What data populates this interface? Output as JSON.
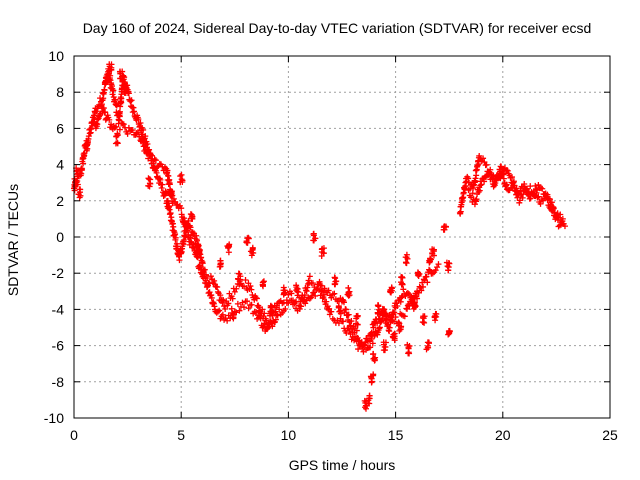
{
  "chart_data": {
    "type": "scatter",
    "title": "Day 160 of 2024, Sidereal Day-to-day VTEC variation (SDTVAR) for receiver ecsd",
    "xlabel": "GPS time / hours",
    "ylabel": "SDTVAR / TECUs",
    "xlim": [
      0,
      25
    ],
    "ylim": [
      -10,
      10
    ],
    "xticks": [
      0,
      5,
      10,
      15,
      20,
      25
    ],
    "yticks": [
      -10,
      -8,
      -6,
      -4,
      -2,
      0,
      2,
      4,
      6,
      8,
      10
    ],
    "grid": true,
    "marker": "plus",
    "color": "#ff0000",
    "series": [
      {
        "name": "SDTVAR",
        "trace_a": [
          [
            0.0,
            2.6
          ],
          [
            0.3,
            3.4
          ],
          [
            0.5,
            4.8
          ],
          [
            0.8,
            6.0
          ],
          [
            1.0,
            7.0
          ],
          [
            1.3,
            7.6
          ],
          [
            1.6,
            9.2
          ],
          [
            1.8,
            8.0
          ],
          [
            2.1,
            6.5
          ],
          [
            2.3,
            8.9
          ],
          [
            2.6,
            7.6
          ],
          [
            3.0,
            6.4
          ],
          [
            3.3,
            5.4
          ],
          [
            3.7,
            4.0
          ],
          [
            4.0,
            3.0
          ],
          [
            4.3,
            2.2
          ],
          [
            4.6,
            0.6
          ],
          [
            4.9,
            -1.2
          ],
          [
            5.3,
            0.8
          ],
          [
            5.7,
            -0.2
          ],
          [
            6.1,
            -2.0
          ],
          [
            6.5,
            -2.6
          ],
          [
            7.0,
            -3.8
          ],
          [
            7.5,
            -3.0
          ],
          [
            8.0,
            -2.5
          ],
          [
            8.5,
            -3.4
          ],
          [
            9.0,
            -4.8
          ],
          [
            9.5,
            -3.6
          ],
          [
            10.0,
            -3.2
          ],
          [
            10.5,
            -3.5
          ],
          [
            11.0,
            -3.4
          ],
          [
            11.5,
            -2.6
          ],
          [
            12.0,
            -3.3
          ],
          [
            12.5,
            -3.6
          ],
          [
            13.0,
            -5.0
          ],
          [
            13.5,
            -6.1
          ],
          [
            13.8,
            -5.5
          ],
          [
            14.1,
            -4.6
          ],
          [
            14.4,
            -3.9
          ],
          [
            14.7,
            -5.0
          ],
          [
            15.0,
            -3.8
          ],
          [
            15.4,
            -3.0
          ],
          [
            15.8,
            -3.6
          ],
          [
            16.2,
            -2.8
          ],
          [
            16.6,
            -2.0
          ],
          [
            17.0,
            -1.5
          ]
        ],
        "trace_b": [
          [
            1.0,
            6.0
          ],
          [
            1.3,
            7.2
          ],
          [
            1.6,
            6.4
          ],
          [
            1.9,
            5.8
          ],
          [
            2.2,
            6.2
          ],
          [
            2.5,
            5.8
          ],
          [
            2.8,
            5.8
          ],
          [
            3.1,
            5.4
          ],
          [
            3.4,
            4.6
          ],
          [
            3.7,
            4.2
          ],
          [
            4.0,
            4.0
          ],
          [
            4.3,
            3.8
          ],
          [
            4.6,
            2.0
          ],
          [
            5.0,
            1.4
          ],
          [
            5.4,
            -0.2
          ],
          [
            5.8,
            -1.4
          ],
          [
            6.2,
            -2.6
          ],
          [
            6.6,
            -4.0
          ],
          [
            7.0,
            -4.6
          ],
          [
            7.5,
            -4.0
          ],
          [
            8.0,
            -3.6
          ],
          [
            8.5,
            -4.2
          ],
          [
            9.0,
            -5.2
          ],
          [
            9.5,
            -4.2
          ],
          [
            10.0,
            -3.6
          ],
          [
            10.5,
            -3.9
          ],
          [
            11.0,
            -2.4
          ],
          [
            11.5,
            -3.0
          ],
          [
            12.0,
            -4.3
          ],
          [
            12.5,
            -4.8
          ],
          [
            13.0,
            -5.6
          ],
          [
            13.5,
            -6.3
          ],
          [
            14.0,
            -5.6
          ],
          [
            14.5,
            -4.1
          ],
          [
            15.0,
            -4.6
          ],
          [
            15.5,
            -4.2
          ],
          [
            16.0,
            -3.0
          ]
        ],
        "fragments": [
          [
            0.05,
            3.0
          ],
          [
            0.15,
            3.6
          ],
          [
            0.25,
            2.4
          ],
          [
            0.6,
            5.0
          ],
          [
            1.7,
            9.4
          ],
          [
            2.2,
            9.0
          ],
          [
            2.4,
            8.2
          ],
          [
            1.5,
            8.6
          ],
          [
            2.0,
            5.4
          ],
          [
            3.5,
            3.0
          ],
          [
            4.5,
            2.4
          ],
          [
            5.5,
            1.2
          ],
          [
            5.0,
            3.2
          ],
          [
            5.8,
            -0.6
          ],
          [
            6.8,
            -1.4
          ],
          [
            7.2,
            -0.6
          ],
          [
            7.4,
            -4.4
          ],
          [
            7.7,
            -2.2
          ],
          [
            8.1,
            -0.2
          ],
          [
            8.3,
            -0.8
          ],
          [
            8.8,
            -2.6
          ],
          [
            9.2,
            -4.0
          ],
          [
            9.8,
            -3.0
          ],
          [
            10.4,
            -2.8
          ],
          [
            11.2,
            0.0
          ],
          [
            11.6,
            -0.8
          ],
          [
            12.2,
            -2.4
          ],
          [
            12.4,
            -4.0
          ],
          [
            12.8,
            -3.0
          ],
          [
            13.2,
            -4.6
          ],
          [
            13.6,
            -9.3
          ],
          [
            13.75,
            -9.0
          ],
          [
            13.9,
            -7.8
          ],
          [
            14.0,
            -6.6
          ],
          [
            14.2,
            -4.0
          ],
          [
            14.5,
            -6.0
          ],
          [
            14.8,
            -3.0
          ],
          [
            14.9,
            -5.5
          ],
          [
            15.2,
            -5.0
          ],
          [
            15.3,
            -2.4
          ],
          [
            15.5,
            -1.2
          ],
          [
            15.6,
            -6.2
          ],
          [
            15.9,
            -3.8
          ],
          [
            16.1,
            -2.0
          ],
          [
            16.3,
            -4.6
          ],
          [
            16.5,
            -6.0
          ],
          [
            16.6,
            -1.4
          ],
          [
            16.75,
            -0.8
          ],
          [
            16.85,
            -4.4
          ],
          [
            17.3,
            0.4
          ],
          [
            17.45,
            -1.6
          ],
          [
            17.5,
            -5.2
          ]
        ],
        "trace_c": [
          [
            18.0,
            1.3
          ],
          [
            18.3,
            3.2
          ],
          [
            18.6,
            2.6
          ],
          [
            18.9,
            4.4
          ],
          [
            19.2,
            4.0
          ],
          [
            19.5,
            3.4
          ],
          [
            19.8,
            3.2
          ],
          [
            20.1,
            3.8
          ],
          [
            20.4,
            3.2
          ],
          [
            20.7,
            2.4
          ],
          [
            21.0,
            2.8
          ],
          [
            21.3,
            2.2
          ],
          [
            21.6,
            2.8
          ],
          [
            21.9,
            2.4
          ],
          [
            22.2,
            2.0
          ],
          [
            22.5,
            1.2
          ],
          [
            22.8,
            1.0
          ]
        ],
        "trace_d": [
          [
            18.4,
            2.4
          ],
          [
            18.7,
            2.0
          ],
          [
            19.0,
            3.0
          ],
          [
            19.3,
            3.6
          ],
          [
            19.6,
            2.8
          ],
          [
            19.9,
            3.8
          ],
          [
            20.2,
            2.6
          ],
          [
            20.5,
            2.8
          ],
          [
            20.8,
            2.0
          ],
          [
            21.1,
            2.6
          ],
          [
            21.4,
            2.6
          ],
          [
            21.7,
            2.0
          ],
          [
            22.0,
            2.2
          ],
          [
            22.3,
            1.6
          ],
          [
            22.6,
            0.8
          ],
          [
            22.9,
            0.6
          ]
        ]
      }
    ]
  }
}
